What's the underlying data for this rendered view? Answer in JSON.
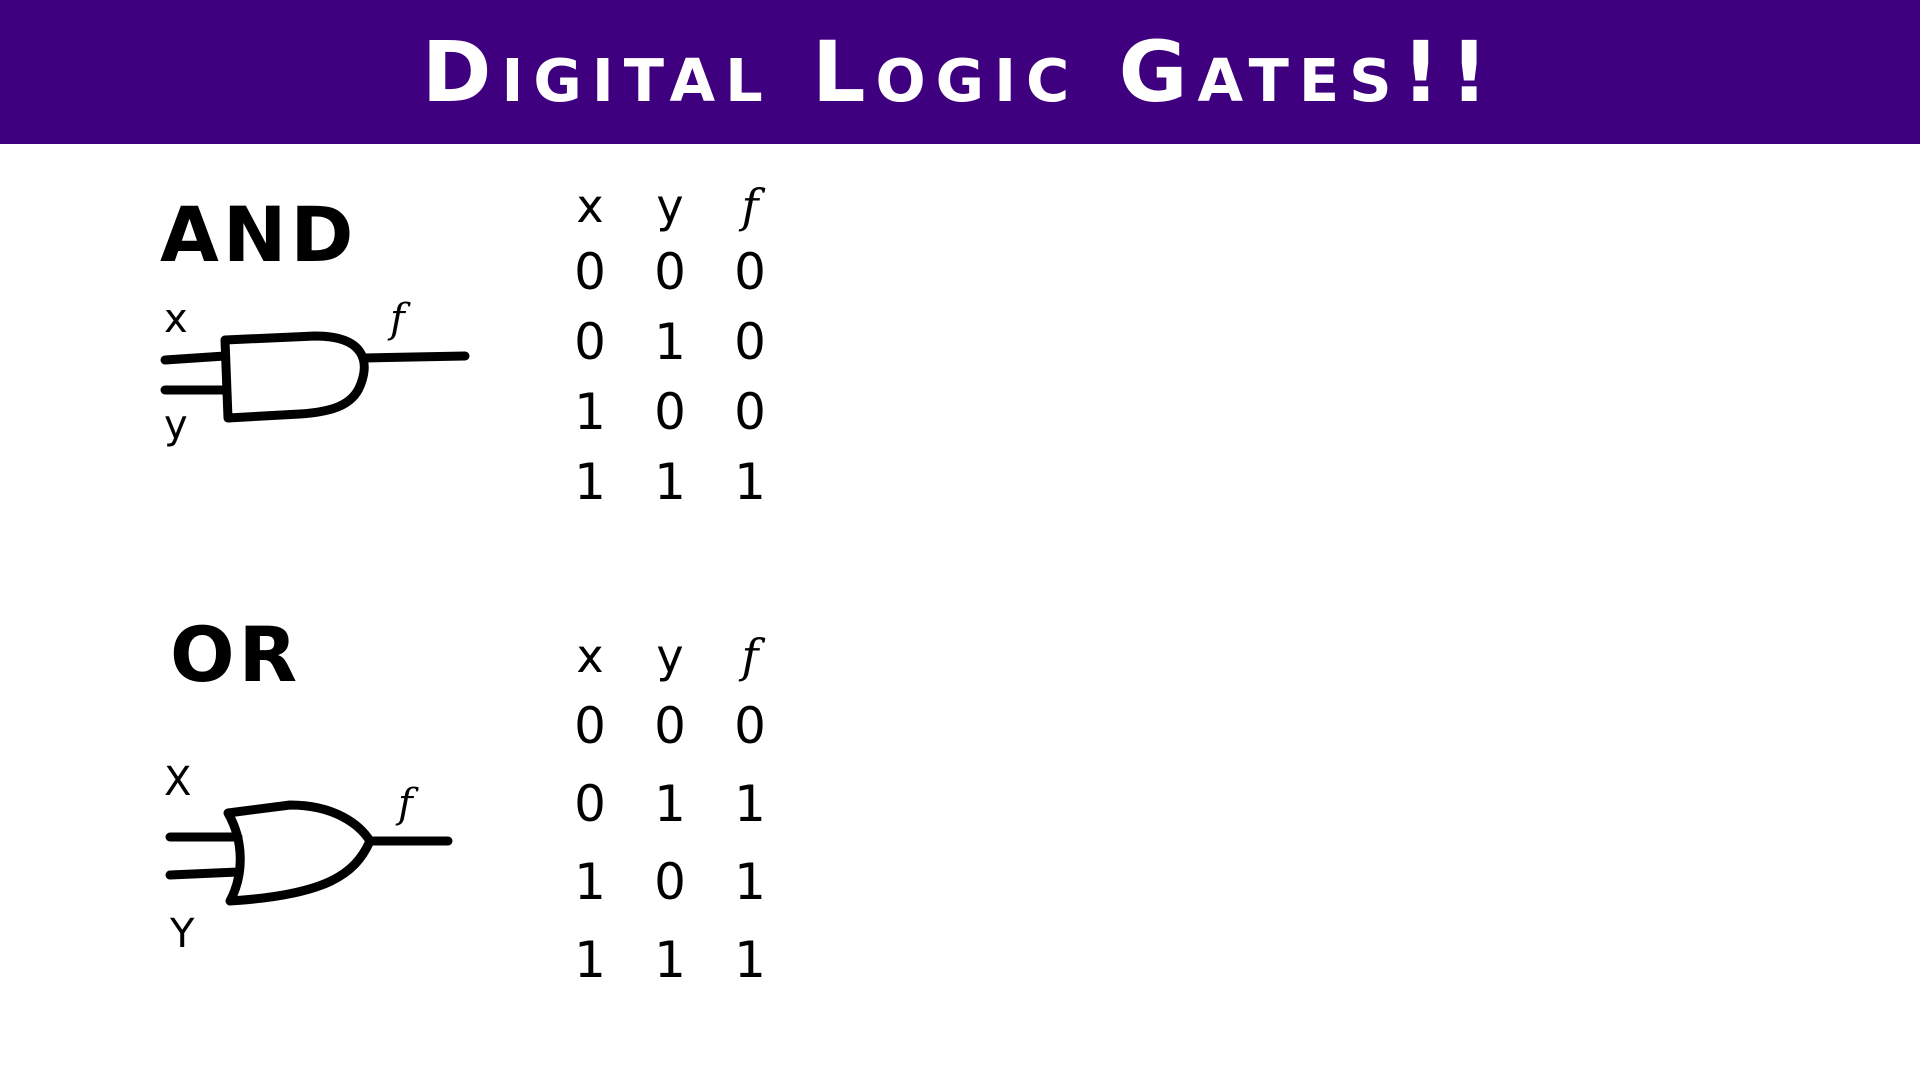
{
  "header": {
    "title": "Digital Logic Gates!!",
    "background_color": "#3f0080",
    "text_color": "#ffffff"
  },
  "gates": [
    {
      "name": "AND",
      "inputs": [
        "x",
        "y"
      ],
      "output": "f",
      "table": {
        "columns": [
          "x",
          "y",
          "f"
        ],
        "rows": [
          [
            "0",
            "0",
            "0"
          ],
          [
            "0",
            "1",
            "0"
          ],
          [
            "1",
            "0",
            "0"
          ],
          [
            "1",
            "1",
            "1"
          ]
        ]
      }
    },
    {
      "name": "OR",
      "inputs": [
        "X",
        "Y"
      ],
      "output": "f",
      "table": {
        "columns": [
          "x",
          "y",
          "f"
        ],
        "rows": [
          [
            "0",
            "0",
            "0"
          ],
          [
            "0",
            "1",
            "1"
          ],
          [
            "1",
            "0",
            "1"
          ],
          [
            "1",
            "1",
            "1"
          ]
        ]
      }
    }
  ]
}
